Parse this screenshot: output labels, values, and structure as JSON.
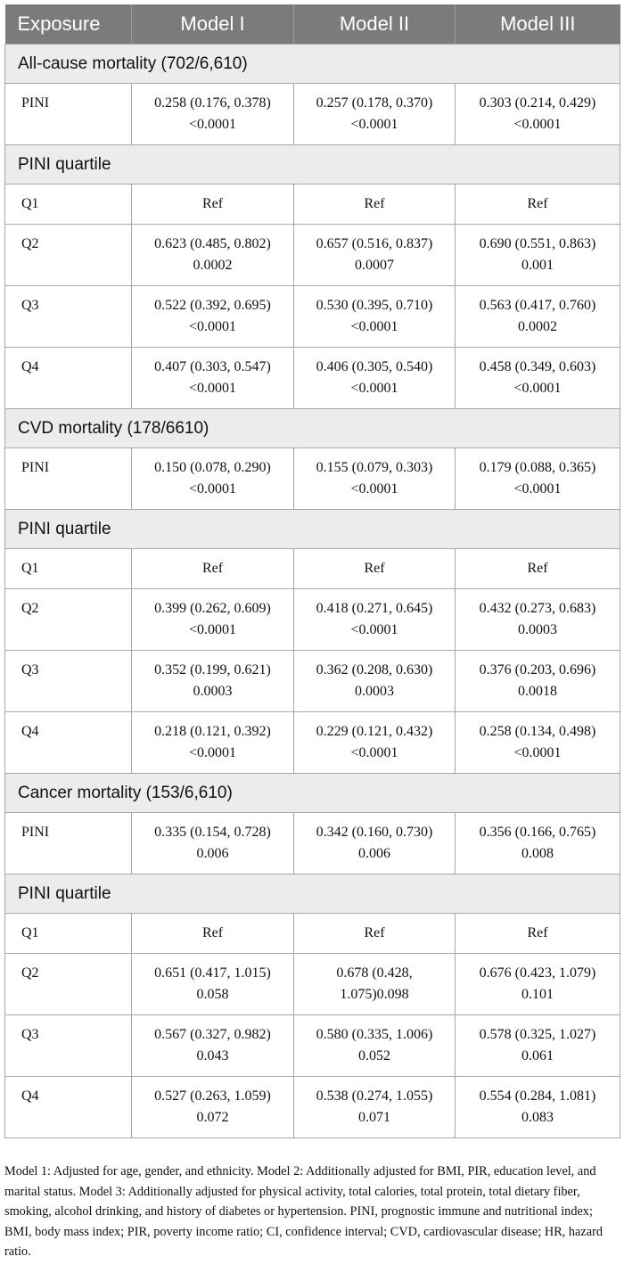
{
  "header": {
    "exposure": "Exposure",
    "model1": "Model I",
    "model2": "Model II",
    "model3": "Model III"
  },
  "sections": [
    {
      "title": "All-cause mortality (702/6,610)",
      "pini": {
        "label": "PINI",
        "m1": "0.258 (0.176, 0.378) <0.0001",
        "m2": "0.257 (0.178, 0.370) <0.0001",
        "m3": "0.303 (0.214, 0.429) <0.0001"
      },
      "quartile_title": "PINI quartile",
      "quartiles": [
        {
          "label": "Q1",
          "m1": "Ref",
          "m2": "Ref",
          "m3": "Ref"
        },
        {
          "label": "Q2",
          "m1": "0.623 (0.485, 0.802) 0.0002",
          "m2": "0.657 (0.516, 0.837) 0.0007",
          "m3": "0.690 (0.551, 0.863) 0.001"
        },
        {
          "label": "Q3",
          "m1": "0.522 (0.392, 0.695) <0.0001",
          "m2": "0.530 (0.395, 0.710) <0.0001",
          "m3": "0.563 (0.417, 0.760) 0.0002"
        },
        {
          "label": "Q4",
          "m1": "0.407 (0.303, 0.547) <0.0001",
          "m2": "0.406 (0.305, 0.540) <0.0001",
          "m3": "0.458 (0.349, 0.603) <0.0001"
        }
      ]
    },
    {
      "title": "CVD mortality (178/6610)",
      "pini": {
        "label": "PINI",
        "m1": "0.150 (0.078, 0.290) <0.0001",
        "m2": "0.155 (0.079, 0.303) <0.0001",
        "m3": "0.179 (0.088, 0.365) <0.0001"
      },
      "quartile_title": "PINI quartile",
      "quartiles": [
        {
          "label": "Q1",
          "m1": "Ref",
          "m2": "Ref",
          "m3": "Ref"
        },
        {
          "label": "Q2",
          "m1": "0.399 (0.262, 0.609) <0.0001",
          "m2": "0.418 (0.271, 0.645)<0.0001",
          "m3": "0.432 (0.273, 0.683) 0.0003"
        },
        {
          "label": "Q3",
          "m1": "0.352 (0.199, 0.621) 0.0003",
          "m2": "0.362 (0.208, 0.630) 0.0003",
          "m3": "0.376 (0.203, 0.696) 0.0018"
        },
        {
          "label": "Q4",
          "m1": "0.218 (0.121, 0.392) <0.0001",
          "m2": "0.229 (0.121, 0.432) <0.0001",
          "m3": "0.258 (0.134, 0.498) <0.0001"
        }
      ]
    },
    {
      "title": "Cancer mortality (153/6,610)",
      "pini": {
        "label": "PINI",
        "m1": "0.335 (0.154, 0.728) 0.006",
        "m2": "0.342 (0.160, 0.730) 0.006",
        "m3": "0.356 (0.166, 0.765) 0.008"
      },
      "quartile_title": "PINI quartile",
      "quartiles": [
        {
          "label": "Q1",
          "m1": "Ref",
          "m2": "Ref",
          "m3": "Ref"
        },
        {
          "label": "Q2",
          "m1": "0.651 (0.417, 1.015) 0.058",
          "m2": "0.678 (0.428, 1.075)0.098",
          "m3": "0.676 (0.423, 1.079) 0.101"
        },
        {
          "label": "Q3",
          "m1": "0.567 (0.327, 0.982) 0.043",
          "m2": "0.580 (0.335, 1.006) 0.052",
          "m3": "0.578 (0.325, 1.027) 0.061"
        },
        {
          "label": "Q4",
          "m1": "0.527 (0.263, 1.059) 0.072",
          "m2": "0.538 (0.274, 1.055) 0.071",
          "m3": "0.554 (0.284, 1.081) 0.083"
        }
      ]
    }
  ],
  "footnote": "Model 1: Adjusted for age, gender, and ethnicity. Model 2: Additionally adjusted for BMI, PIR, education level, and marital status. Model 3: Additionally adjusted for physical activity, total calories, total protein, total dietary fiber, smoking, alcohol drinking, and history of diabetes or hypertension. PINI, prognostic immune and nutritional index; BMI, body mass index; PIR, poverty income ratio; CI, confidence interval; CVD, cardiovascular disease; HR, hazard ratio."
}
